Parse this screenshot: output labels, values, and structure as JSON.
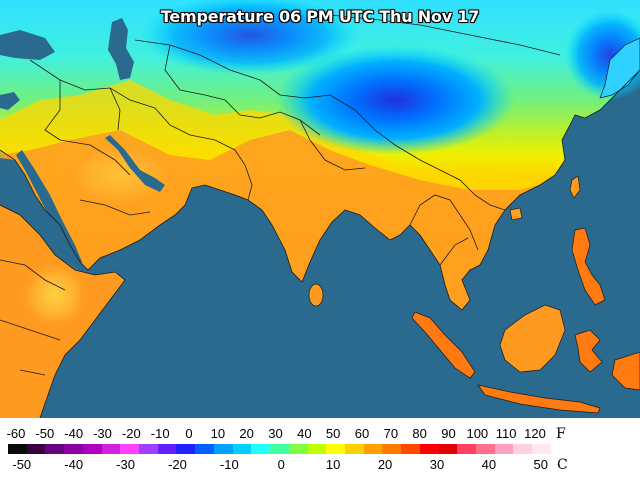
{
  "map": {
    "title": "Temperature 06 PM UTC Thu Nov 17",
    "ocean_color": "#2a6a8e",
    "border_color": "#1a1a1a"
  },
  "legend": {
    "fahrenheit_unit": "F",
    "celsius_unit": "C",
    "fahrenheit_ticks": [
      "-60",
      "-50",
      "-40",
      "-30",
      "-20",
      "-10",
      "0",
      "10",
      "20",
      "30",
      "40",
      "50",
      "60",
      "70",
      "80",
      "90",
      "100",
      "110",
      "120"
    ],
    "celsius_ticks": [
      "-50",
      "-40",
      "-30",
      "-20",
      "-10",
      "0",
      "10",
      "20",
      "30",
      "40",
      "50"
    ],
    "scale_colors": [
      "#0a0a0a",
      "#3a0040",
      "#6a0080",
      "#8a00a0",
      "#b000c0",
      "#d020e0",
      "#ff40ff",
      "#a040ff",
      "#6020ff",
      "#2020ff",
      "#0060ff",
      "#00a0ff",
      "#00d0ff",
      "#20ffff",
      "#40ffa0",
      "#80ff40",
      "#c0ff00",
      "#ffff00",
      "#ffd000",
      "#ffa000",
      "#ff7a00",
      "#ff4800",
      "#ff0000",
      "#e00000",
      "#ff4060",
      "#ff7090",
      "#ffa0c0",
      "#ffd0e0",
      "#ffe8f0"
    ]
  }
}
